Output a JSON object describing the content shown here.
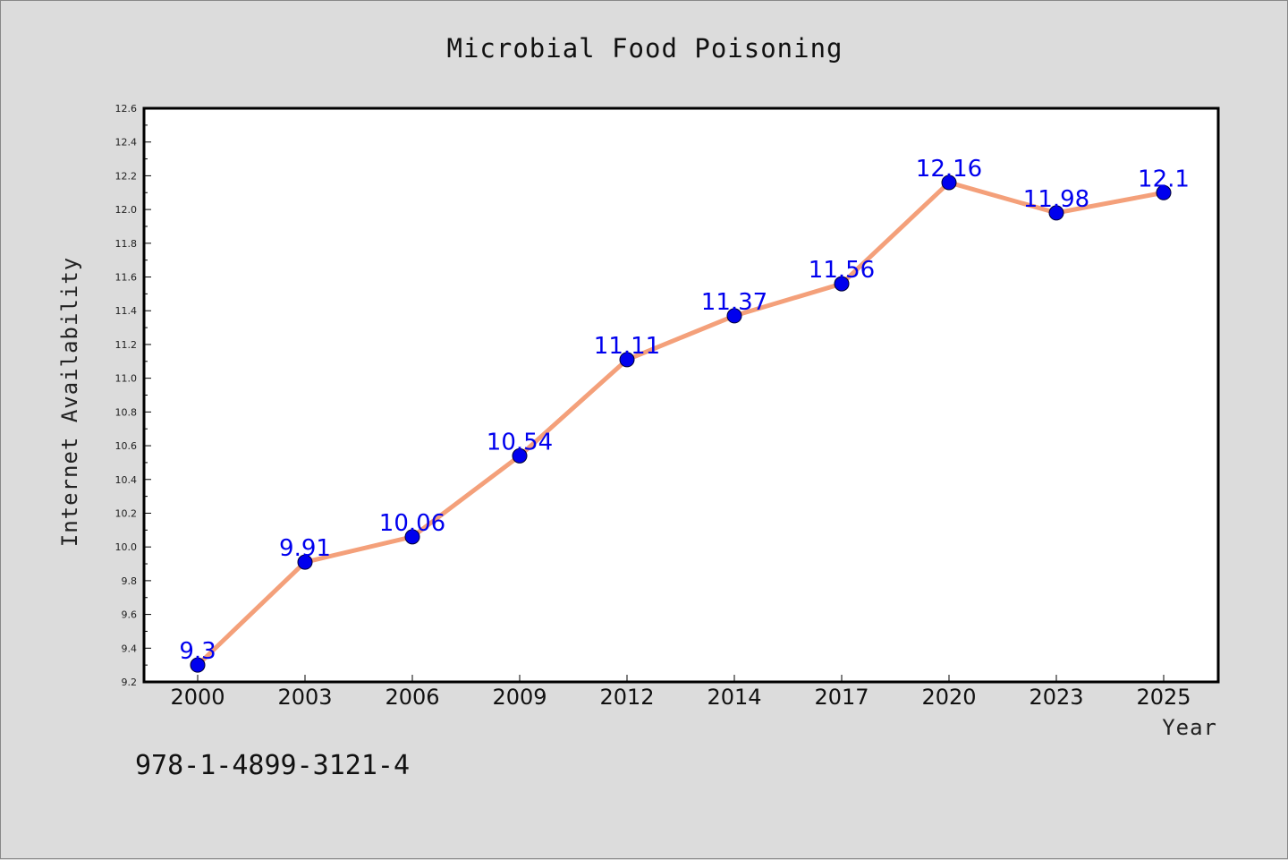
{
  "chart_data": {
    "type": "line",
    "title": "Microbial Food Poisoning",
    "xlabel": "Year",
    "ylabel": "Internet Availability",
    "categories": [
      "2000",
      "2003",
      "2006",
      "2009",
      "2012",
      "2014",
      "2017",
      "2020",
      "2023",
      "2025"
    ],
    "values": [
      9.3,
      9.91,
      10.06,
      10.54,
      11.11,
      11.37,
      11.56,
      12.16,
      11.98,
      12.1
    ],
    "data_labels": [
      "9.3",
      "9.91",
      "10.06",
      "10.54",
      "11.11",
      "11.37",
      "11.56",
      "12.16",
      "11.98",
      "12.1"
    ],
    "ylim": [
      9.2,
      12.6
    ],
    "yticks": [
      "9.2",
      "9.4",
      "9.6",
      "9.8",
      "10.0",
      "10.2",
      "10.4",
      "10.6",
      "10.8",
      "11.0",
      "11.2",
      "11.4",
      "11.6",
      "11.8",
      "12.0",
      "12.2",
      "12.4",
      "12.6"
    ],
    "grid": false,
    "legend": "none",
    "line_color": "#f4a07a",
    "marker_color": "#0000ee",
    "label_color": "#0000ee"
  },
  "footer": {
    "isbn": "978-1-4899-3121-4"
  }
}
